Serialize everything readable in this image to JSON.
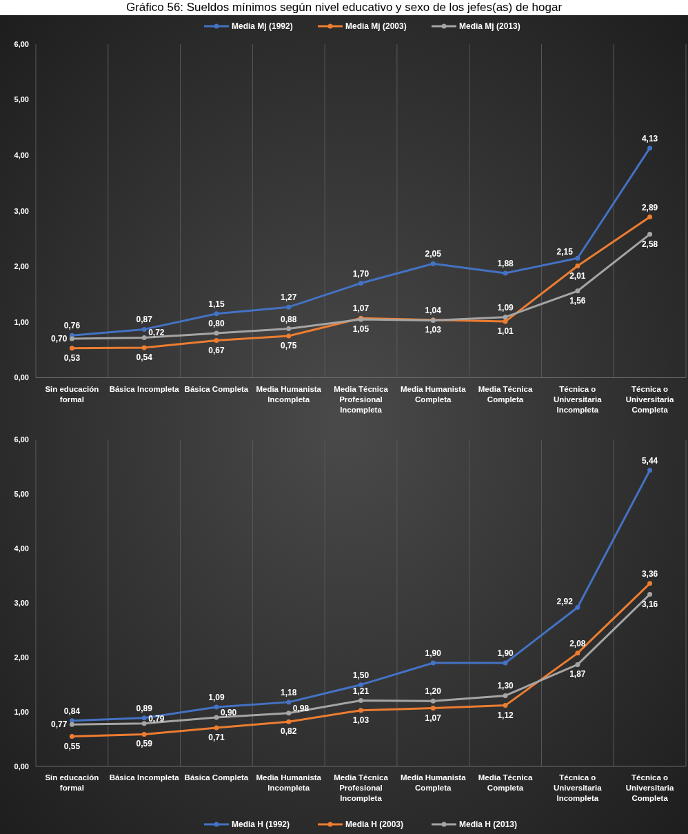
{
  "chart_data": [
    {
      "type": "line",
      "title": "Gráfico 56: Sueldos mínimos según nivel educativo y sexo de los jefes(as) de hogar",
      "categories": [
        "Sin educación formal",
        "Básica Incompleta",
        "Básica Completa",
        "Media Humanista Incompleta",
        "Media Técnica Profesional Incompleta",
        "Media Humanista Completa",
        "Media Técnica Completa",
        "Técnica o Universitaria Incompleta",
        "Técnica o Universitaria Completa"
      ],
      "series": [
        {
          "name": "Media Mj (1992)",
          "color": "#4472c4",
          "values": [
            0.76,
            0.87,
            1.15,
            1.27,
            1.7,
            2.05,
            1.88,
            2.15,
            4.13
          ],
          "value_labels": [
            "0,76",
            "0,87",
            "1,15",
            "1,27",
            "1,70",
            "2,05",
            "1,88",
            "2,15",
            "4,13"
          ]
        },
        {
          "name": "Media Mj (2003)",
          "color": "#ed7d31",
          "values": [
            0.53,
            0.54,
            0.67,
            0.75,
            1.07,
            1.04,
            1.01,
            2.01,
            2.89
          ],
          "value_labels": [
            "0,53",
            "0,54",
            "0,67",
            "0,75",
            "1,07",
            "1,04",
            "1,01",
            "2,01",
            "2,89"
          ]
        },
        {
          "name": "Media Mj (2013)",
          "color": "#a5a5a5",
          "values": [
            0.7,
            0.72,
            0.8,
            0.88,
            1.05,
            1.03,
            1.09,
            1.56,
            2.58
          ],
          "value_labels": [
            "0,70",
            "0,72",
            "0,80",
            "0,88",
            "1,05",
            "1,03",
            "1,09",
            "1,56",
            "2,58"
          ]
        }
      ],
      "ylim": [
        0,
        6
      ],
      "yticks": [
        {
          "value": 0,
          "label": "0,00"
        },
        {
          "value": 1,
          "label": "1,00"
        },
        {
          "value": 2,
          "label": "2,00"
        },
        {
          "value": 3,
          "label": "3,00"
        },
        {
          "value": 4,
          "label": "4,00"
        },
        {
          "value": 5,
          "label": "5,00"
        },
        {
          "value": 6,
          "label": "6,00"
        }
      ],
      "grid": "x",
      "legend": "top",
      "marker": "circle"
    },
    {
      "type": "line",
      "categories": [
        "Sin educación formal",
        "Básica Incompleta",
        "Básica Completa",
        "Media Humanista Incompleta",
        "Media Técnica Profesional Incompleta",
        "Media Humanista Completa",
        "Media Técnica Completa",
        "Técnica o Universitaria Incompleta",
        "Técnica o Universitaria Completa"
      ],
      "series": [
        {
          "name": "Media H (1992)",
          "color": "#4472c4",
          "values": [
            0.84,
            0.89,
            1.09,
            1.18,
            1.5,
            1.9,
            1.9,
            2.92,
            5.44
          ],
          "value_labels": [
            "0,84",
            "0,89",
            "1,09",
            "1,18",
            "1,50",
            "1,90",
            "1,90",
            "2,92",
            "5,44"
          ]
        },
        {
          "name": "Media H (2003)",
          "color": "#ed7d31",
          "values": [
            0.55,
            0.59,
            0.71,
            0.82,
            1.03,
            1.07,
            1.12,
            2.08,
            3.36
          ],
          "value_labels": [
            "0,55",
            "0,59",
            "0,71",
            "0,82",
            "1,03",
            "1,07",
            "1,12",
            "2,08",
            "3,36"
          ]
        },
        {
          "name": "Media H (2013)",
          "color": "#a5a5a5",
          "values": [
            0.77,
            0.79,
            0.9,
            0.98,
            1.21,
            1.2,
            1.3,
            1.87,
            3.16
          ],
          "value_labels": [
            "0,77",
            "0,79",
            "0,90",
            "0,98",
            "1,21",
            "1,20",
            "1,30",
            "1,87",
            "3,16"
          ]
        }
      ],
      "ylim": [
        0,
        6
      ],
      "yticks": [
        {
          "value": 0,
          "label": "0,00"
        },
        {
          "value": 1,
          "label": "1,00"
        },
        {
          "value": 2,
          "label": "2,00"
        },
        {
          "value": 3,
          "label": "3,00"
        },
        {
          "value": 4,
          "label": "4,00"
        },
        {
          "value": 5,
          "label": "5,00"
        },
        {
          "value": 6,
          "label": "6,00"
        }
      ],
      "grid": "x",
      "legend": "bottom",
      "marker": "circle"
    }
  ]
}
